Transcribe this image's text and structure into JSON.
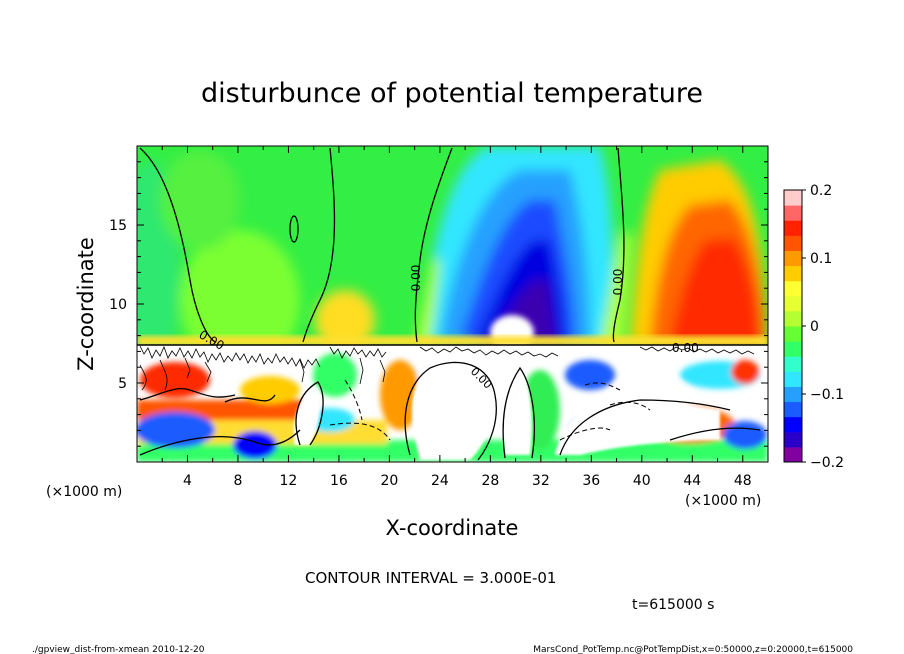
{
  "chart_data": {
    "type": "heatmap",
    "title": "disturbunce of potential temperature",
    "xlabel": "X-coordinate",
    "ylabel": "Z-coordinate",
    "x_unit_label": "(×1000 m)",
    "z_unit_label": "(×1000 m)",
    "xlim": [
      0,
      50
    ],
    "ylim": [
      0,
      20
    ],
    "x_ticks": [
      "4",
      "8",
      "12",
      "16",
      "20",
      "24",
      "28",
      "32",
      "36",
      "40",
      "44",
      "48"
    ],
    "y_ticks": [
      "5",
      "10",
      "15"
    ],
    "colorbar": {
      "range": [
        -0.2,
        0.2
      ],
      "tick_labels": [
        "0.2",
        "0.1",
        "0",
        "−0.1",
        "−0.2"
      ],
      "colors": [
        "#8000a0",
        "#2a00c8",
        "#0000ff",
        "#1a5cff",
        "#26a0ff",
        "#33e6ff",
        "#33ffcc",
        "#33ff66",
        "#66ff33",
        "#b3ff33",
        "#e6ff33",
        "#ffff33",
        "#ffcc00",
        "#ff9900",
        "#ff5500",
        "#ff2200",
        "#ff6666",
        "#ffcccc"
      ]
    },
    "contour_labels": [
      "0.00",
      "0.00",
      "0.00",
      "0.00",
      "0.00"
    ],
    "contour_interval_text": "CONTOUR INTERVAL = 3.000E-01",
    "time_text": "t=615000 s",
    "footer_left": "./gpview_dist-from-xmean  2010-12-20",
    "footer_right": "MarsCond_PotTemp.nc@PotTempDist,x=0:50000,z=0:20000,t=615000"
  }
}
